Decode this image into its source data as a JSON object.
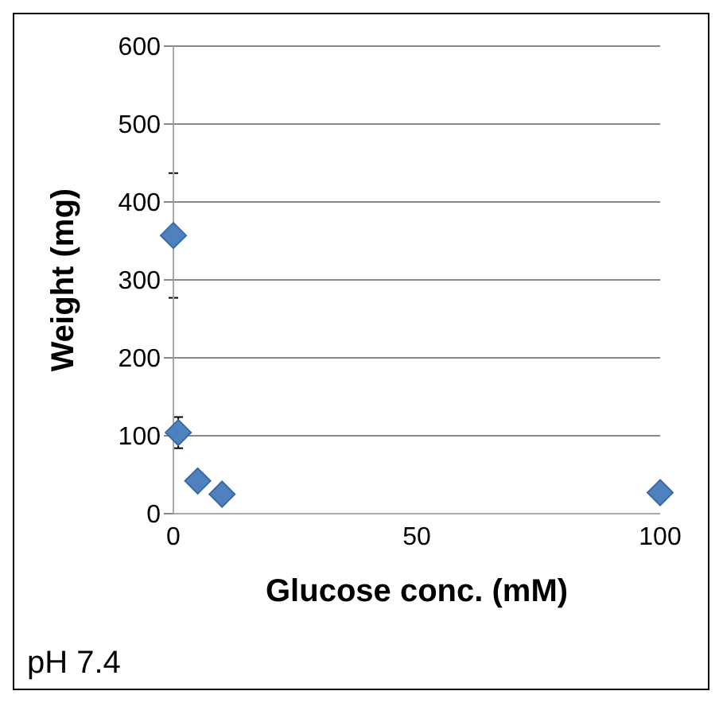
{
  "chart_data": {
    "type": "scatter",
    "xlabel": "Glucose conc. (mM)",
    "ylabel": "Weight (mg)",
    "x": [
      0,
      1,
      5,
      10,
      100
    ],
    "values": [
      357,
      104,
      42,
      25,
      27
    ],
    "errors": [
      80,
      20,
      null,
      null,
      null
    ],
    "color": "#4f81bd",
    "marker": "diamond",
    "xlim": [
      0,
      100
    ],
    "xticks": [
      0,
      50,
      100
    ],
    "ylim": [
      0,
      600
    ],
    "yticks": [
      0,
      100,
      200,
      300,
      400,
      500,
      600
    ],
    "grid": "y",
    "annotations": [
      "pH 7.4"
    ]
  }
}
